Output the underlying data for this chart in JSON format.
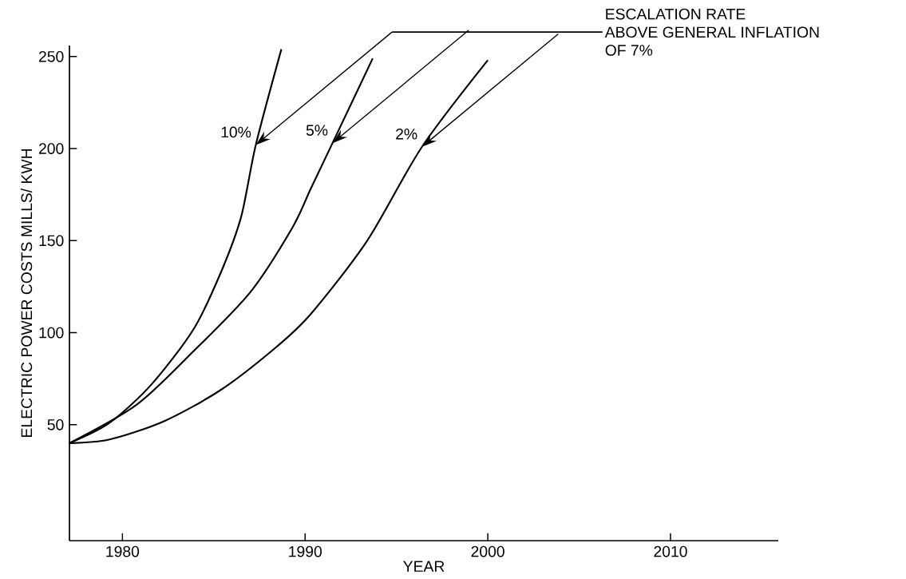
{
  "chart_data": {
    "type": "line",
    "xlabel": "YEAR",
    "ylabel": "ELECTRIC POWER COSTS MILLS/ KWH",
    "annotations": [
      "ESCALATION RATE",
      "ABOVE GENERAL INFLATION",
      "OF 7%",
      {
        "text": "10%",
        "x": 1987.3,
        "y": 202
      },
      {
        "text": "5%",
        "x": 1991.5,
        "y": 203
      },
      {
        "text": "2%",
        "x": 1996.4,
        "y": 201
      }
    ],
    "xlim": [
      1977.1,
      2015.9
    ],
    "ylim": [
      -13,
      256
    ],
    "xticks": [
      1980,
      1990,
      2000,
      2010
    ],
    "yticks": [
      50,
      100,
      150,
      200,
      250
    ],
    "series": [
      {
        "color": "#000000",
        "x": [
          1977.1,
          1979.3,
          1981.6,
          1983.9,
          1985.4,
          1986.5,
          1987.3,
          1988.7
        ],
        "values": [
          40,
          51,
          72,
          102,
          133,
          163,
          202,
          254
        ]
      },
      {
        "color": "#000000",
        "x": [
          1977.1,
          1980.8,
          1983.9,
          1987,
          1989.3,
          1990.3,
          1991.5,
          1993.7
        ],
        "values": [
          40,
          61,
          90,
          122,
          157,
          178,
          203,
          249
        ]
      },
      {
        "color": "#000000",
        "x": [
          1977.1,
          1979.3,
          1982.3,
          1985.4,
          1988.4,
          1990.3,
          1993.4,
          1996.4,
          2000
        ],
        "values": [
          40,
          42,
          52,
          69,
          92,
          110,
          150,
          201,
          248
        ]
      }
    ]
  }
}
